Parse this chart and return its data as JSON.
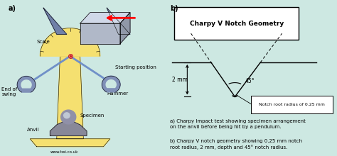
{
  "bg_color": "#cde8e2",
  "title": "Charpy V Notch Geometry",
  "label_b": "b)",
  "label_a": "a)",
  "caption_a": "a) Charpy Impact test showing specimen arrangement\non the anvil before being hit by a pendulum.",
  "caption_b": "b) Charpy V notch geometry showing 0.25 mm notch\nroot radius, 2 mm, depth and 45° notch radius.",
  "dim_label_depth": "2 mm",
  "angle_label": "45°",
  "notch_root_label": "Notch root radius of 0.25 mm",
  "left_label_scale": "Scale",
  "left_label_starting": "Starting position",
  "left_label_end": "End of\nswing",
  "left_label_hammer": "Hammer",
  "left_label_specimen": "Specimen",
  "left_label_anvil": "Anvil",
  "left_label_web": "www.twi.co.uk",
  "yellow": "#f5e070",
  "yellow_dark": "#e8c820",
  "blue_arm": "#7090c8",
  "hammer_color": "#8090b8",
  "specimen_color": "#9090a8",
  "spec_block_front": "#b0b8c8",
  "spec_block_top": "#d0d8e8",
  "spec_block_side": "#9098a8",
  "pivot_color": "#cc2020",
  "gray_anvil": "#888898"
}
